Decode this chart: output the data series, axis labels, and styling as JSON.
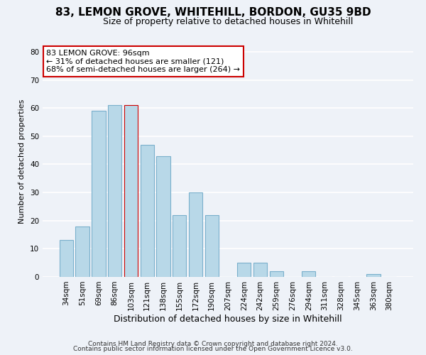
{
  "title": "83, LEMON GROVE, WHITEHILL, BORDON, GU35 9BD",
  "subtitle": "Size of property relative to detached houses in Whitehill",
  "xlabel": "Distribution of detached houses by size in Whitehill",
  "ylabel": "Number of detached properties",
  "categories": [
    "34sqm",
    "51sqm",
    "69sqm",
    "86sqm",
    "103sqm",
    "121sqm",
    "138sqm",
    "155sqm",
    "172sqm",
    "190sqm",
    "207sqm",
    "224sqm",
    "242sqm",
    "259sqm",
    "276sqm",
    "294sqm",
    "311sqm",
    "328sqm",
    "345sqm",
    "363sqm",
    "380sqm"
  ],
  "values": [
    13,
    18,
    59,
    61,
    61,
    47,
    43,
    22,
    30,
    22,
    0,
    5,
    5,
    2,
    0,
    2,
    0,
    0,
    0,
    1,
    0
  ],
  "bar_color": "#b8d8e8",
  "bar_edge_color": "#7ab0cc",
  "annotation_line1": "83 LEMON GROVE: 96sqm",
  "annotation_line2": "← 31% of detached houses are smaller (121)",
  "annotation_line3": "68% of semi-detached houses are larger (264) →",
  "annotation_box_edge_color": "#cc0000",
  "annotation_box_bg": "#ffffff",
  "highlight_bar_edge": "#cc0000",
  "highlight_index": 4,
  "ylim": [
    0,
    82
  ],
  "yticks": [
    0,
    10,
    20,
    30,
    40,
    50,
    60,
    70,
    80
  ],
  "footer_line1": "Contains HM Land Registry data © Crown copyright and database right 2024.",
  "footer_line2": "Contains public sector information licensed under the Open Government Licence v3.0.",
  "background_color": "#eef2f8",
  "grid_color": "#ffffff",
  "title_fontsize": 11,
  "subtitle_fontsize": 9,
  "xlabel_fontsize": 9,
  "ylabel_fontsize": 8,
  "footer_fontsize": 6.5,
  "annot_fontsize": 8,
  "tick_fontsize": 7.5
}
